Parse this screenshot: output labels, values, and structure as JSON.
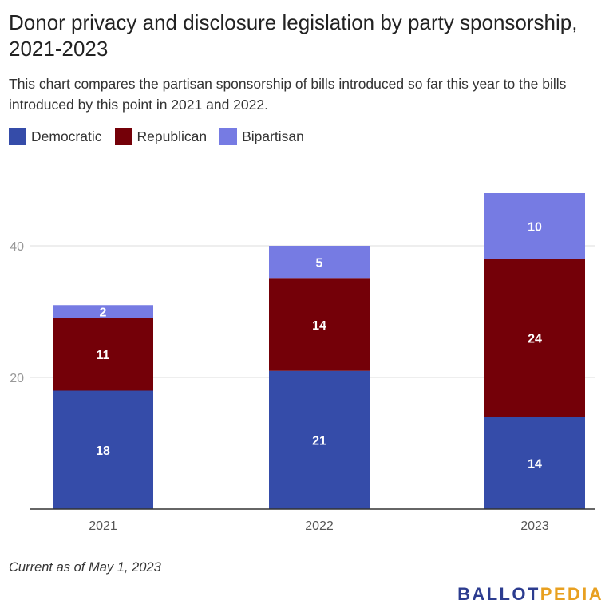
{
  "header": {
    "title": "Donor privacy and disclosure legislation by party sponsorship, 2021-2023",
    "subtitle": "This chart compares the partisan sponsorship of bills introduced so far this year to the bills introduced by this point in 2021 and 2022."
  },
  "legend": {
    "items": [
      {
        "label": "Democratic",
        "color": "#354ca9"
      },
      {
        "label": "Republican",
        "color": "#740008"
      },
      {
        "label": "Bipartisan",
        "color": "#767be3"
      }
    ]
  },
  "chart_data": {
    "type": "bar",
    "stacked": true,
    "categories": [
      "2021",
      "2022",
      "2023"
    ],
    "series": [
      {
        "name": "Democratic",
        "color": "#354ca9",
        "values": [
          18,
          21,
          14
        ]
      },
      {
        "name": "Republican",
        "color": "#740008",
        "values": [
          11,
          14,
          24
        ]
      },
      {
        "name": "Bipartisan",
        "color": "#767be3",
        "values": [
          2,
          5,
          10
        ]
      }
    ],
    "yticks": [
      20,
      40
    ],
    "ylim": [
      0,
      50
    ],
    "grid": true,
    "legend_position": "top-left",
    "data_labels": true
  },
  "footer": {
    "note": "Current as of May 1, 2023",
    "brand_ballot": "BALLOT",
    "brand_pedia": "PEDIA"
  }
}
